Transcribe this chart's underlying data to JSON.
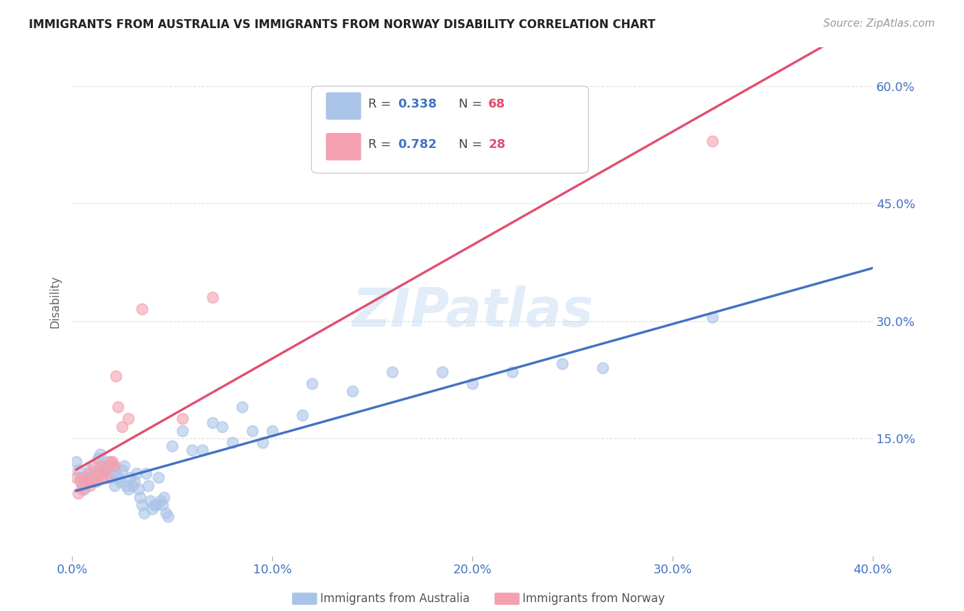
{
  "title": "IMMIGRANTS FROM AUSTRALIA VS IMMIGRANTS FROM NORWAY DISABILITY CORRELATION CHART",
  "source": "Source: ZipAtlas.com",
  "ylabel": "Disability",
  "xlim": [
    0.0,
    0.4
  ],
  "ylim": [
    0.0,
    0.65
  ],
  "xticks": [
    0.0,
    0.1,
    0.2,
    0.3,
    0.4
  ],
  "xtick_labels": [
    "0.0%",
    "10.0%",
    "20.0%",
    "30.0%",
    "40.0%"
  ],
  "yticks": [
    0.0,
    0.15,
    0.3,
    0.45,
    0.6
  ],
  "ytick_labels": [
    "",
    "15.0%",
    "30.0%",
    "45.0%",
    "60.0%"
  ],
  "grid_color": "#dddddd",
  "background_color": "#ffffff",
  "australia_color": "#aac4e8",
  "norway_color": "#f4a0b0",
  "australia_line_color": "#4472c4",
  "norway_line_color": "#e05070",
  "R_australia": 0.338,
  "N_australia": 68,
  "R_norway": 0.782,
  "N_norway": 28,
  "watermark": "ZIPatlas",
  "title_color": "#222222",
  "axis_label_color": "#4472c4",
  "legend_value_color": "#4472c4",
  "legend_N_color": "#e05070",
  "australia_x": [
    0.002,
    0.003,
    0.004,
    0.005,
    0.006,
    0.007,
    0.008,
    0.009,
    0.01,
    0.011,
    0.012,
    0.013,
    0.014,
    0.015,
    0.016,
    0.017,
    0.018,
    0.019,
    0.02,
    0.021,
    0.022,
    0.023,
    0.024,
    0.025,
    0.026,
    0.027,
    0.028,
    0.029,
    0.03,
    0.031,
    0.032,
    0.033,
    0.034,
    0.035,
    0.036,
    0.037,
    0.038,
    0.039,
    0.04,
    0.041,
    0.042,
    0.043,
    0.044,
    0.045,
    0.046,
    0.047,
    0.048,
    0.05,
    0.055,
    0.06,
    0.065,
    0.07,
    0.075,
    0.08,
    0.085,
    0.09,
    0.095,
    0.1,
    0.115,
    0.12,
    0.14,
    0.16,
    0.185,
    0.2,
    0.22,
    0.245,
    0.265,
    0.32
  ],
  "australia_y": [
    0.12,
    0.11,
    0.1,
    0.09,
    0.085,
    0.1,
    0.095,
    0.11,
    0.105,
    0.1,
    0.095,
    0.125,
    0.13,
    0.115,
    0.11,
    0.105,
    0.12,
    0.1,
    0.115,
    0.09,
    0.105,
    0.1,
    0.095,
    0.11,
    0.115,
    0.09,
    0.085,
    0.1,
    0.09,
    0.095,
    0.105,
    0.085,
    0.075,
    0.065,
    0.055,
    0.105,
    0.09,
    0.07,
    0.06,
    0.065,
    0.065,
    0.1,
    0.07,
    0.065,
    0.075,
    0.055,
    0.05,
    0.14,
    0.16,
    0.135,
    0.135,
    0.17,
    0.165,
    0.145,
    0.19,
    0.16,
    0.145,
    0.16,
    0.18,
    0.22,
    0.21,
    0.235,
    0.235,
    0.22,
    0.235,
    0.245,
    0.24,
    0.305
  ],
  "norway_x": [
    0.002,
    0.003,
    0.004,
    0.005,
    0.006,
    0.007,
    0.008,
    0.009,
    0.01,
    0.011,
    0.012,
    0.013,
    0.014,
    0.015,
    0.016,
    0.017,
    0.018,
    0.019,
    0.02,
    0.021,
    0.022,
    0.023,
    0.025,
    0.028,
    0.035,
    0.055,
    0.07,
    0.32
  ],
  "norway_y": [
    0.1,
    0.08,
    0.095,
    0.085,
    0.1,
    0.095,
    0.105,
    0.09,
    0.095,
    0.115,
    0.1,
    0.105,
    0.115,
    0.1,
    0.11,
    0.1,
    0.115,
    0.12,
    0.12,
    0.115,
    0.23,
    0.19,
    0.165,
    0.175,
    0.315,
    0.175,
    0.33,
    0.53
  ]
}
